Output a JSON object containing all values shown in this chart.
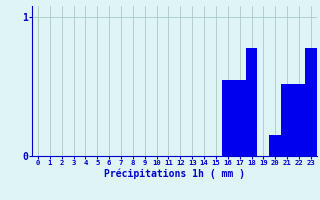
{
  "categories": [
    0,
    1,
    2,
    3,
    4,
    5,
    6,
    7,
    8,
    9,
    10,
    11,
    12,
    13,
    14,
    15,
    16,
    17,
    18,
    19,
    20,
    21,
    22,
    23
  ],
  "values": [
    0,
    0,
    0,
    0,
    0,
    0,
    0,
    0,
    0,
    0,
    0,
    0,
    0,
    0,
    0,
    0,
    0.55,
    0.55,
    0.78,
    0,
    0.15,
    0.52,
    0.52,
    0.78
  ],
  "bar_color": "#0000ee",
  "background_color": "#dff4f4",
  "grid_color": "#aac8c8",
  "axis_label_color": "#0000cc",
  "tick_color": "#0000cc",
  "ylabel_0": "0",
  "ylabel_1": "1",
  "xlabel": "Précipitations 1h ( mm )",
  "ylim": [
    0,
    1.08
  ],
  "yticks": [
    0,
    1
  ],
  "xlim": [
    -0.5,
    23.5
  ],
  "figsize": [
    3.2,
    2.0
  ],
  "dpi": 100
}
